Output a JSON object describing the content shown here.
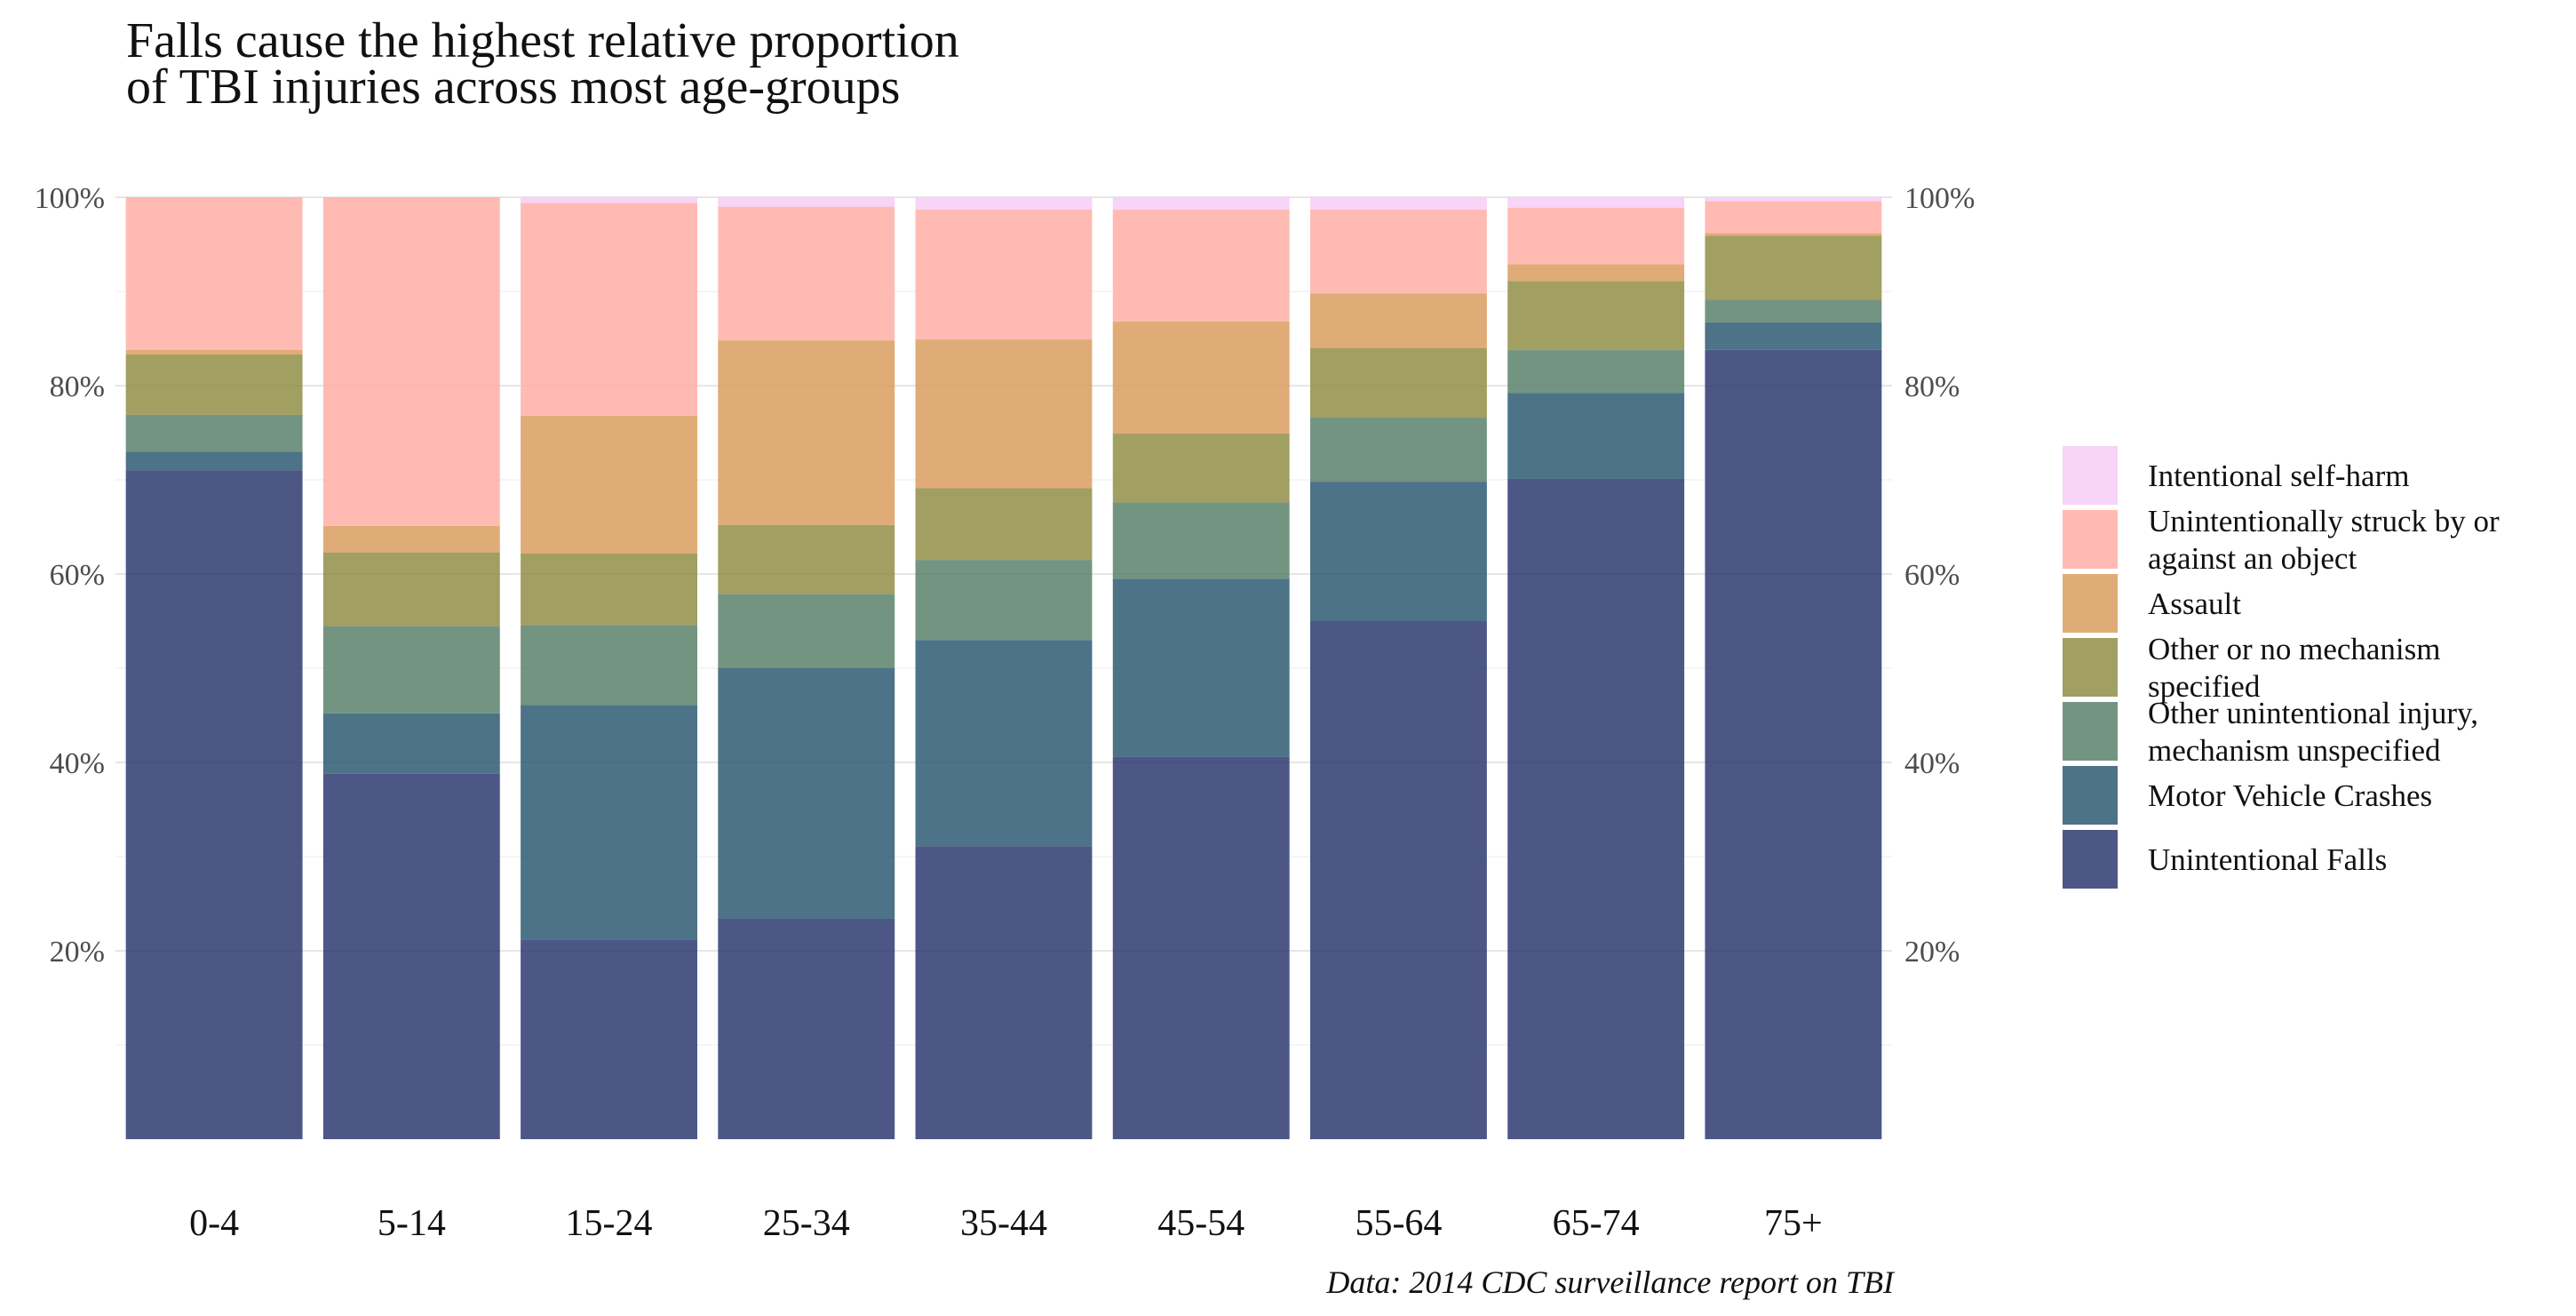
{
  "chart_data": {
    "type": "bar",
    "stacked": true,
    "normalized": true,
    "title": "Falls cause the highest relative proportion of TBI injuries across most age-groups",
    "title_lines": [
      "Falls cause the highest relative proportion",
      "of TBI injuries across most age-groups"
    ],
    "caption": "Data: 2014 CDC surveillance report on TBI",
    "xlabel": "",
    "ylabel": "",
    "ylim": [
      0,
      100
    ],
    "y_ticks": [
      "20%",
      "40%",
      "60%",
      "80%",
      "100%"
    ],
    "y_tick_values": [
      20,
      40,
      60,
      80,
      100
    ],
    "y_axis_both_sides": true,
    "grid": true,
    "legend_position": "right",
    "categories": [
      "0-4",
      "5-14",
      "15-24",
      "25-34",
      "35-44",
      "45-54",
      "55-64",
      "65-74",
      "75+"
    ],
    "series": [
      {
        "name": "Unintentional Falls",
        "color": "#24326b",
        "values": [
          71.0,
          38.8,
          21.2,
          23.4,
          31.1,
          40.6,
          55.0,
          70.1,
          83.8
        ]
      },
      {
        "name": "Motor Vehicle Crashes",
        "color": "#25546c",
        "values": [
          2.0,
          6.4,
          24.9,
          26.6,
          21.9,
          18.9,
          14.8,
          9.1,
          2.9
        ]
      },
      {
        "name": "Other unintentional injury, mechanism unspecified",
        "color": "#567d67",
        "values": [
          3.9,
          9.3,
          8.5,
          7.9,
          8.5,
          8.1,
          6.8,
          4.6,
          2.4
        ]
      },
      {
        "name": "Other or no mechanism specified",
        "color": "#8c8a40",
        "values": [
          6.4,
          7.8,
          7.6,
          7.3,
          7.6,
          7.3,
          7.4,
          7.3,
          6.8
        ]
      },
      {
        "name": "Assault",
        "color": "#d89a59",
        "values": [
          0.5,
          2.8,
          14.6,
          19.6,
          15.8,
          11.9,
          5.8,
          1.8,
          0.3
        ]
      },
      {
        "name": "Unintentionally struck by or against an object",
        "color": "#ffaca2",
        "values": [
          16.2,
          34.9,
          22.6,
          14.2,
          13.8,
          11.9,
          8.9,
          6.0,
          3.4
        ]
      },
      {
        "name": "Intentional self-harm",
        "color": "#f7cbf7",
        "values": [
          0.0,
          0.0,
          0.6,
          1.0,
          1.3,
          1.3,
          1.3,
          1.1,
          0.4
        ]
      }
    ],
    "legend": [
      {
        "label_lines": [
          "Intentional self-harm"
        ],
        "color": "#f7cbf7"
      },
      {
        "label_lines": [
          "Unintentionally struck by or",
          "against an object"
        ],
        "color": "#ffaca2"
      },
      {
        "label_lines": [
          "Assault"
        ],
        "color": "#d89a59"
      },
      {
        "label_lines": [
          "Other or no mechanism",
          "specified"
        ],
        "color": "#8c8a40"
      },
      {
        "label_lines": [
          "Other unintentional injury,",
          "mechanism unspecified"
        ],
        "color": "#567d67"
      },
      {
        "label_lines": [
          "Motor Vehicle Crashes"
        ],
        "color": "#25546c"
      },
      {
        "label_lines": [
          "Unintentional Falls"
        ],
        "color": "#24326b"
      }
    ]
  }
}
